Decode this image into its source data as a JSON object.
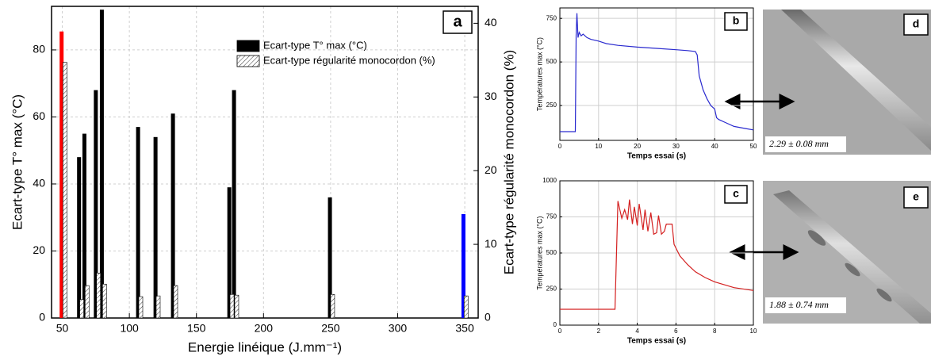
{
  "chart_data": [
    {
      "type": "bar",
      "panel_label": "a",
      "xlabel": "Energie linéique (J.mm⁻¹)",
      "ylabel": "Ecart-type T° max (°C)",
      "y2label": "Ecart-type régularité monocordon (%)",
      "xlim": [
        42,
        360
      ],
      "xticks": [
        50,
        100,
        150,
        200,
        250,
        300,
        350
      ],
      "ylim": [
        0,
        93
      ],
      "yticks": [
        0,
        20,
        40,
        60,
        80
      ],
      "y2lim": [
        0,
        42.3
      ],
      "y2ticks": [
        0,
        10,
        20,
        30,
        40
      ],
      "grid": true,
      "legend": "upper center",
      "series": [
        {
          "name": "Ecart-type T° max (°C)",
          "color": "#000000",
          "colors": [
            "#ff0000",
            "#000000",
            "#000000",
            "#000000",
            "#000000",
            "#000000",
            "#000000",
            "#000000",
            "#000000",
            "#000000",
            "#000000",
            "#0000ff"
          ],
          "x": [
            49.5,
            62.5,
            66.5,
            75,
            79.5,
            106.5,
            119.5,
            132.5,
            174.5,
            178,
            249.5,
            349
          ],
          "values": [
            85.5,
            48,
            55,
            68,
            92,
            57,
            54,
            61,
            39,
            68,
            36,
            31
          ]
        },
        {
          "name": "Ecart-type régularité monocordon (%)",
          "color": "#000000",
          "hatch": true,
          "axis": "y2",
          "x": [
            52,
            64.5,
            68.5,
            77,
            81.5,
            108.5,
            121.5,
            134.5,
            176.5,
            180,
            251.5,
            351
          ],
          "values": [
            34.7,
            2.5,
            4.4,
            6.1,
            4.6,
            2.9,
            3,
            4.4,
            3.2,
            3.1,
            3.2,
            3
          ]
        }
      ]
    },
    {
      "type": "line",
      "panel_label": "b",
      "xlabel": "Temps essai (s)",
      "ylabel": "Températures max (°C)",
      "xlim": [
        0,
        50
      ],
      "xticks": [
        0,
        10,
        20,
        30,
        40,
        50
      ],
      "ylim": [
        50,
        810
      ],
      "yticks": [
        250,
        500,
        750
      ],
      "grid": true,
      "series": [
        {
          "color": "#2a2acf",
          "x": [
            0,
            4,
            4.2,
            4.4,
            4.7,
            5,
            5.5,
            6,
            7,
            8,
            10,
            12,
            15,
            20,
            25,
            30,
            33,
            35,
            35.5,
            36,
            37,
            38,
            39,
            40,
            40.5,
            41,
            43,
            45,
            48,
            50
          ],
          "values": [
            100,
            100,
            650,
            780,
            640,
            670,
            650,
            660,
            640,
            630,
            620,
            605,
            595,
            585,
            578,
            570,
            565,
            560,
            540,
            420,
            340,
            290,
            250,
            230,
            180,
            170,
            150,
            130,
            118,
            110
          ]
        }
      ]
    },
    {
      "type": "line",
      "panel_label": "c",
      "xlabel": "Temps essai (s)",
      "ylabel": "Températures max (°C)",
      "xlim": [
        0,
        10
      ],
      "xticks": [
        0,
        2,
        4,
        6,
        8,
        10
      ],
      "ylim": [
        0,
        1000
      ],
      "yticks": [
        0,
        250,
        500,
        750,
        1000
      ],
      "grid": true,
      "series": [
        {
          "color": "#d42020",
          "x": [
            0,
            2.85,
            3,
            3.1,
            3.2,
            3.35,
            3.5,
            3.6,
            3.75,
            3.85,
            4,
            4.1,
            4.3,
            4.4,
            4.55,
            4.7,
            4.85,
            5,
            5.1,
            5.25,
            5.4,
            5.5,
            5.65,
            5.8,
            5.9,
            6.2,
            6.6,
            7,
            7.5,
            8,
            9,
            10
          ],
          "values": [
            110,
            110,
            860,
            800,
            740,
            800,
            730,
            870,
            700,
            820,
            690,
            840,
            660,
            800,
            650,
            780,
            630,
            640,
            760,
            630,
            650,
            700,
            700,
            700,
            560,
            480,
            420,
            370,
            330,
            300,
            260,
            240
          ]
        }
      ]
    }
  ],
  "photos": [
    {
      "label": "d",
      "caption": "2.29 ± 0.08 mm"
    },
    {
      "label": "e",
      "caption": "1.88 ± 0.74 mm"
    }
  ]
}
